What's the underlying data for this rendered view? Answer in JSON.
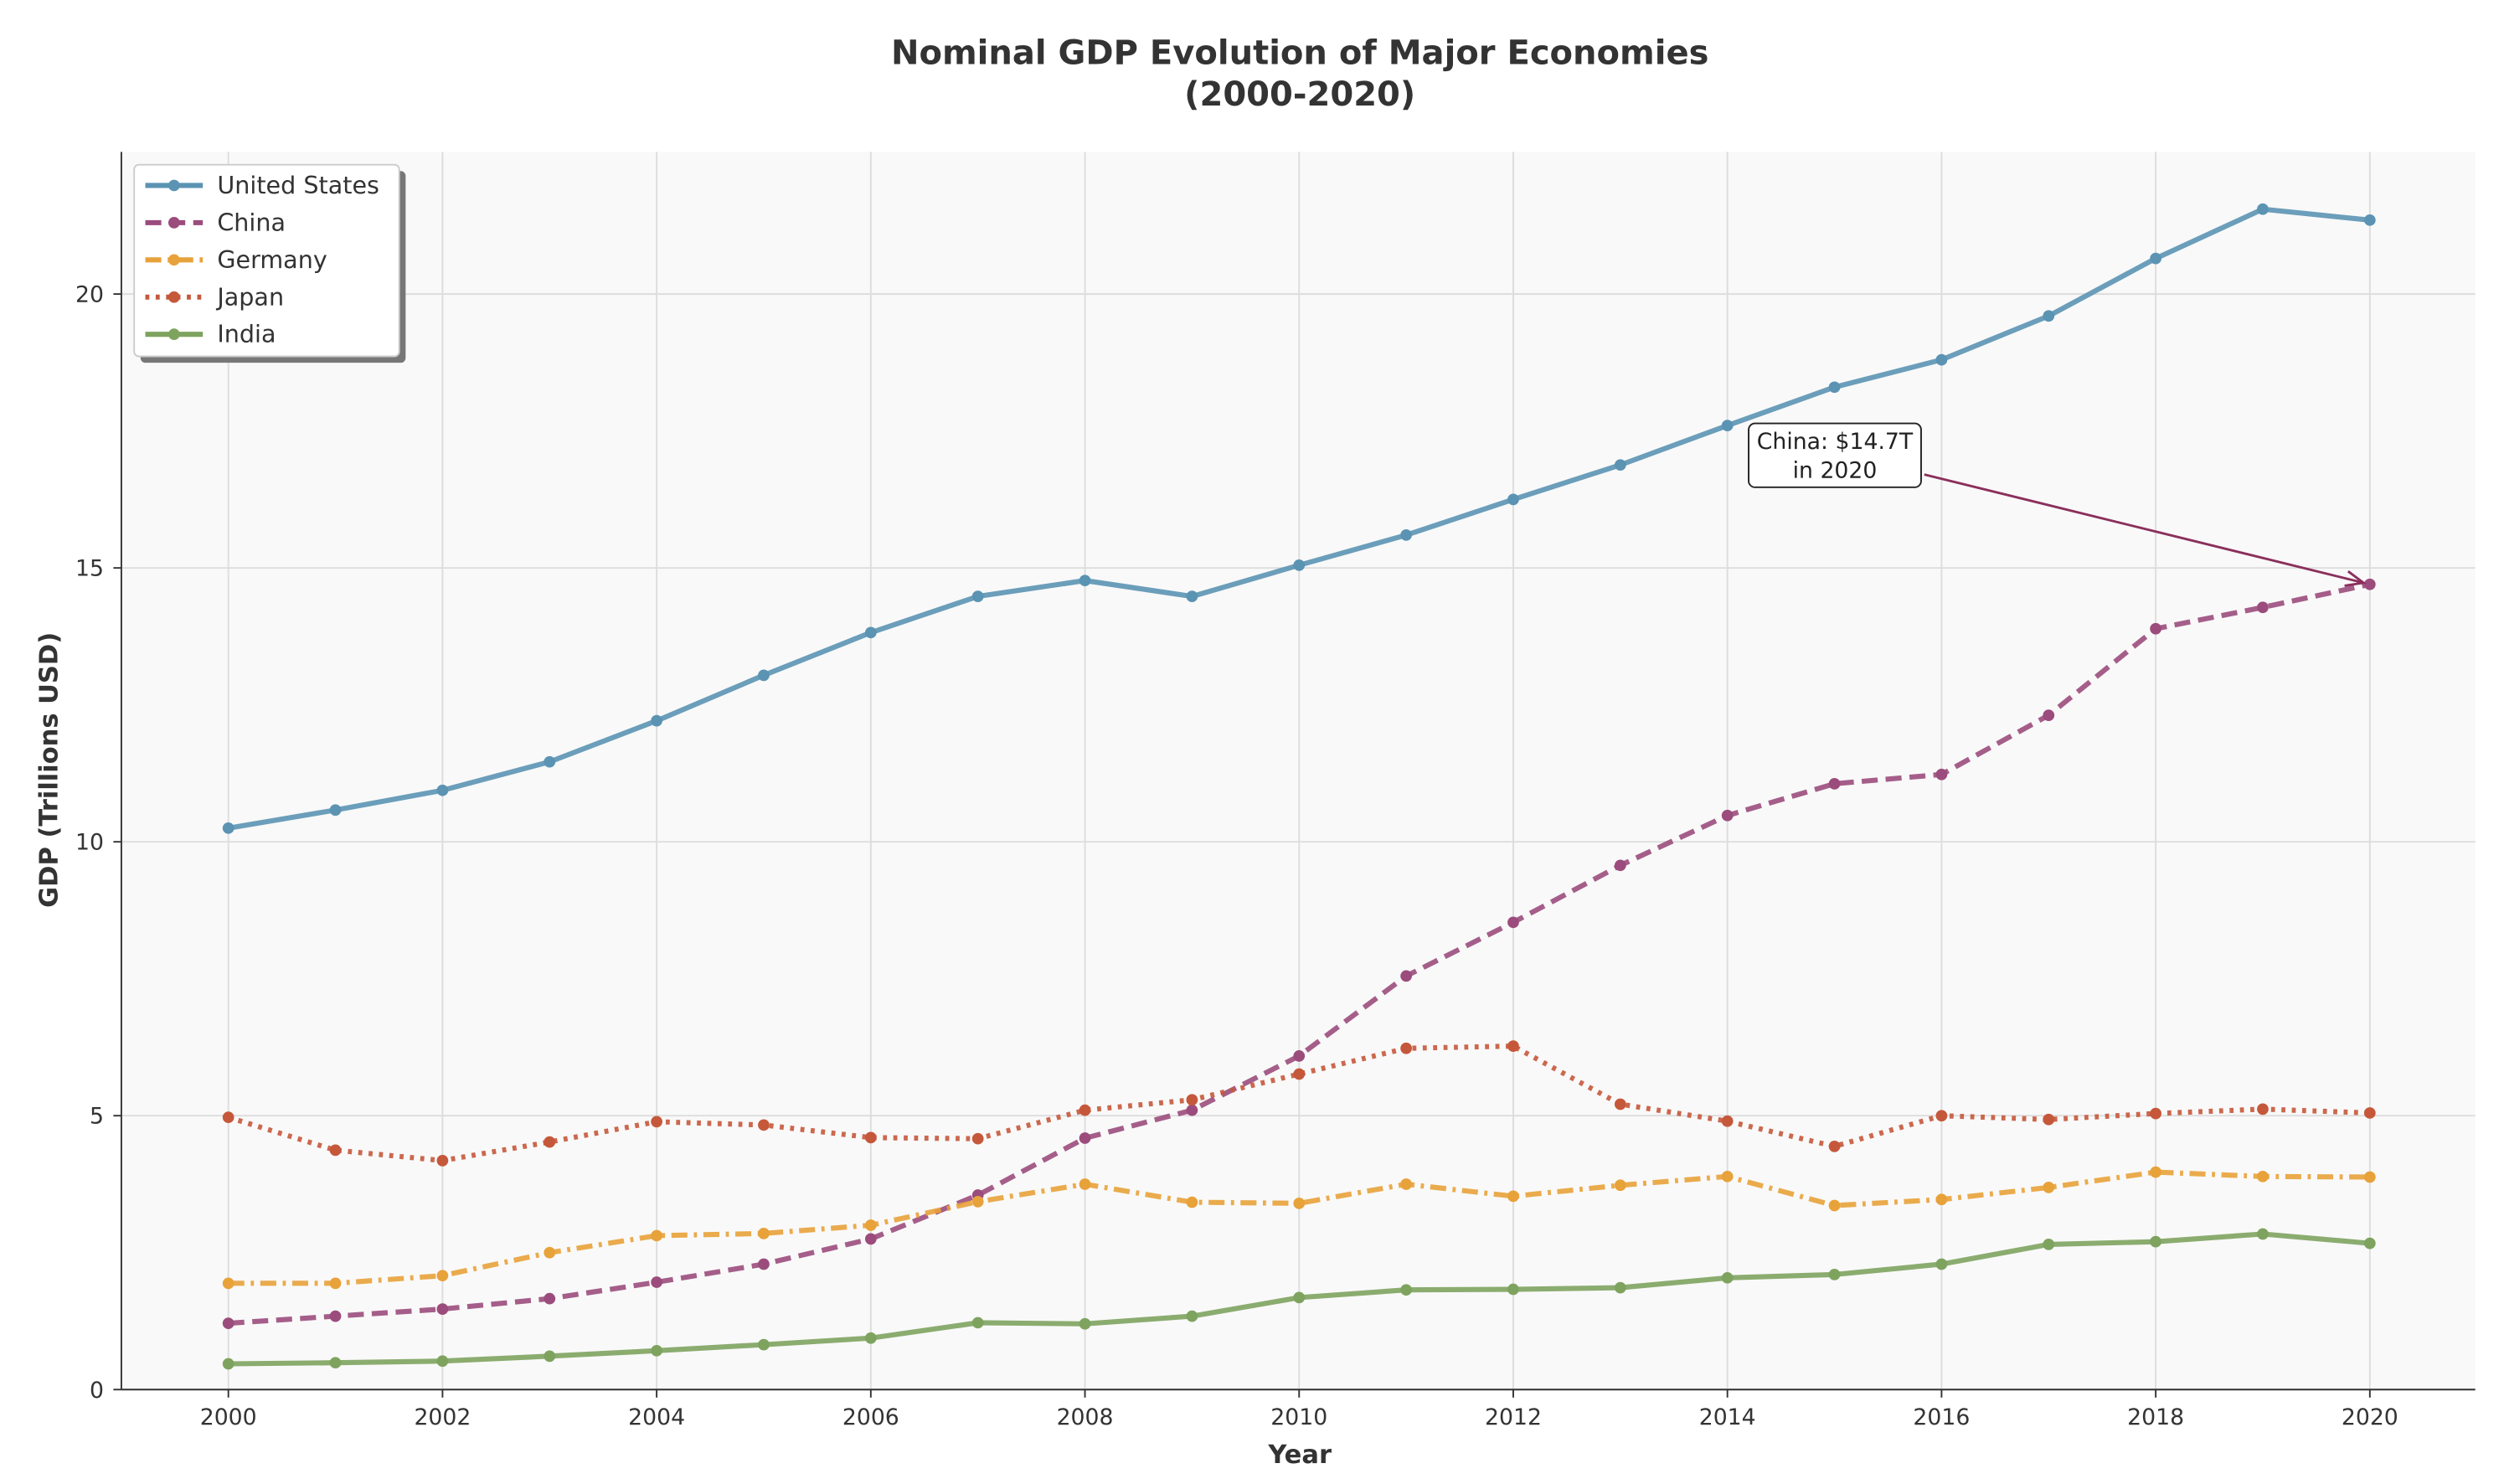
{
  "chart_data": {
    "type": "line",
    "title": "Nominal GDP Evolution of Major Economies",
    "subtitle": "(2000-2020)",
    "xlabel": "Year",
    "ylabel": "GDP (Trillions USD)",
    "xlim": [
      1999,
      2021
    ],
    "ylim": [
      0,
      22.6
    ],
    "xticks": [
      "2000",
      "2002",
      "2004",
      "2006",
      "2008",
      "2010",
      "2012",
      "2014",
      "2016",
      "2018",
      "2020"
    ],
    "yticks": [
      "0",
      "5",
      "10",
      "15",
      "20"
    ],
    "grid": true,
    "legend_position": "top-left",
    "x": [
      2000,
      2001,
      2002,
      2003,
      2004,
      2005,
      2006,
      2007,
      2008,
      2009,
      2010,
      2011,
      2012,
      2013,
      2014,
      2015,
      2016,
      2017,
      2018,
      2019,
      2020
    ],
    "series": [
      {
        "name": "United States",
        "color": "#5b93b3",
        "style": "solid",
        "values": [
          10.25,
          10.58,
          10.94,
          11.46,
          12.21,
          13.04,
          13.82,
          14.48,
          14.77,
          14.48,
          15.05,
          15.6,
          16.25,
          16.88,
          17.6,
          18.3,
          18.8,
          19.6,
          20.65,
          21.55,
          21.35
        ]
      },
      {
        "name": "China",
        "color": "#9b4c7c",
        "style": "dashed",
        "values": [
          1.21,
          1.34,
          1.47,
          1.66,
          1.96,
          2.29,
          2.75,
          3.55,
          4.59,
          5.1,
          6.09,
          7.55,
          8.53,
          9.57,
          10.48,
          11.06,
          11.23,
          12.31,
          13.89,
          14.28,
          14.7
        ]
      },
      {
        "name": "Germany",
        "color": "#e8a23a",
        "style": "dashdot",
        "values": [
          1.94,
          1.94,
          2.08,
          2.5,
          2.81,
          2.85,
          3.0,
          3.43,
          3.75,
          3.42,
          3.4,
          3.75,
          3.53,
          3.73,
          3.89,
          3.36,
          3.47,
          3.69,
          3.97,
          3.89,
          3.88
        ]
      },
      {
        "name": "Japan",
        "color": "#c5583b",
        "style": "dotted",
        "values": [
          4.97,
          4.37,
          4.18,
          4.52,
          4.89,
          4.83,
          4.6,
          4.58,
          5.1,
          5.29,
          5.76,
          6.23,
          6.27,
          5.21,
          4.9,
          4.44,
          5.0,
          4.93,
          5.04,
          5.12,
          5.05
        ]
      },
      {
        "name": "India",
        "color": "#7ea35f",
        "style": "solid",
        "values": [
          0.47,
          0.49,
          0.52,
          0.61,
          0.71,
          0.82,
          0.94,
          1.22,
          1.2,
          1.34,
          1.68,
          1.82,
          1.83,
          1.86,
          2.04,
          2.1,
          2.29,
          2.65,
          2.7,
          2.84,
          2.67
        ]
      }
    ],
    "annotation": {
      "line1": "China: $14.7T",
      "line2": "in 2020",
      "x": 2020,
      "y": 14.7,
      "color": "#8b2f5c"
    }
  }
}
